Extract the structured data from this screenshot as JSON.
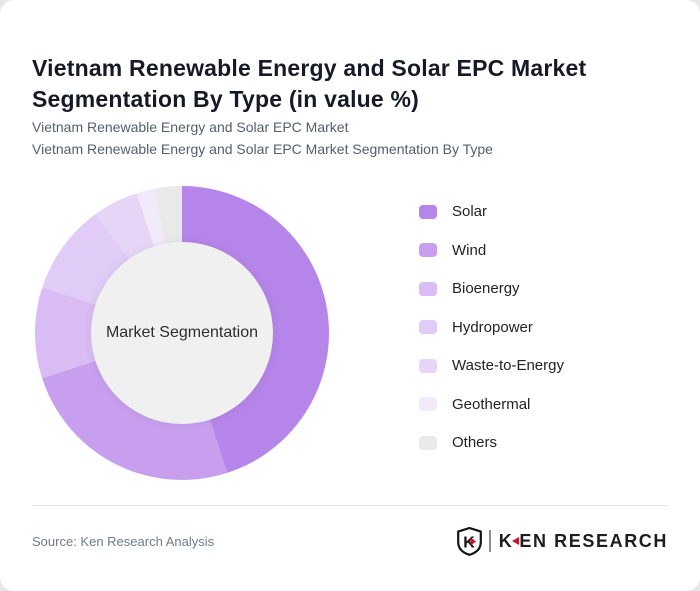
{
  "page": {
    "title": "Vietnam Renewable Energy and Solar EPC Market Segmentation By Type (in value %)",
    "subtitle_line1": "Vietnam Renewable Energy and Solar EPC Market",
    "subtitle_line2": "Vietnam Renewable Energy and Solar EPC Market Segmentation By Type"
  },
  "chart_data": {
    "type": "pie",
    "variant": "donut",
    "title": "Vietnam Renewable Energy and Solar EPC Market Segmentation By Type (in value %)",
    "center_label": "Market Segmentation",
    "hole_color": "#f0f0f0",
    "start_angle_deg": 0,
    "direction": "clockwise",
    "legend_position": "right",
    "values_unit": "percent",
    "segments": [
      {
        "label": "Solar",
        "value": 45,
        "color": "#b685e9"
      },
      {
        "label": "Wind",
        "value": 25,
        "color": "#c89fee"
      },
      {
        "label": "Bioenergy",
        "value": 10,
        "color": "#d9bcf3"
      },
      {
        "label": "Hydropower",
        "value": 10,
        "color": "#e0ccf6"
      },
      {
        "label": "Waste-to-Energy",
        "value": 5,
        "color": "#e6d5f7"
      },
      {
        "label": "Geothermal",
        "value": 2,
        "color": "#f0eafa"
      },
      {
        "label": "Others",
        "value": 3,
        "color": "#e9e9e9"
      }
    ]
  },
  "footer": {
    "source": "Source: Ken Research Analysis",
    "logo": {
      "monogram": "K",
      "wordmark_k": "K",
      "wordmark_rest": "EN RESEARCH",
      "accent_color": "#c8102e"
    }
  }
}
